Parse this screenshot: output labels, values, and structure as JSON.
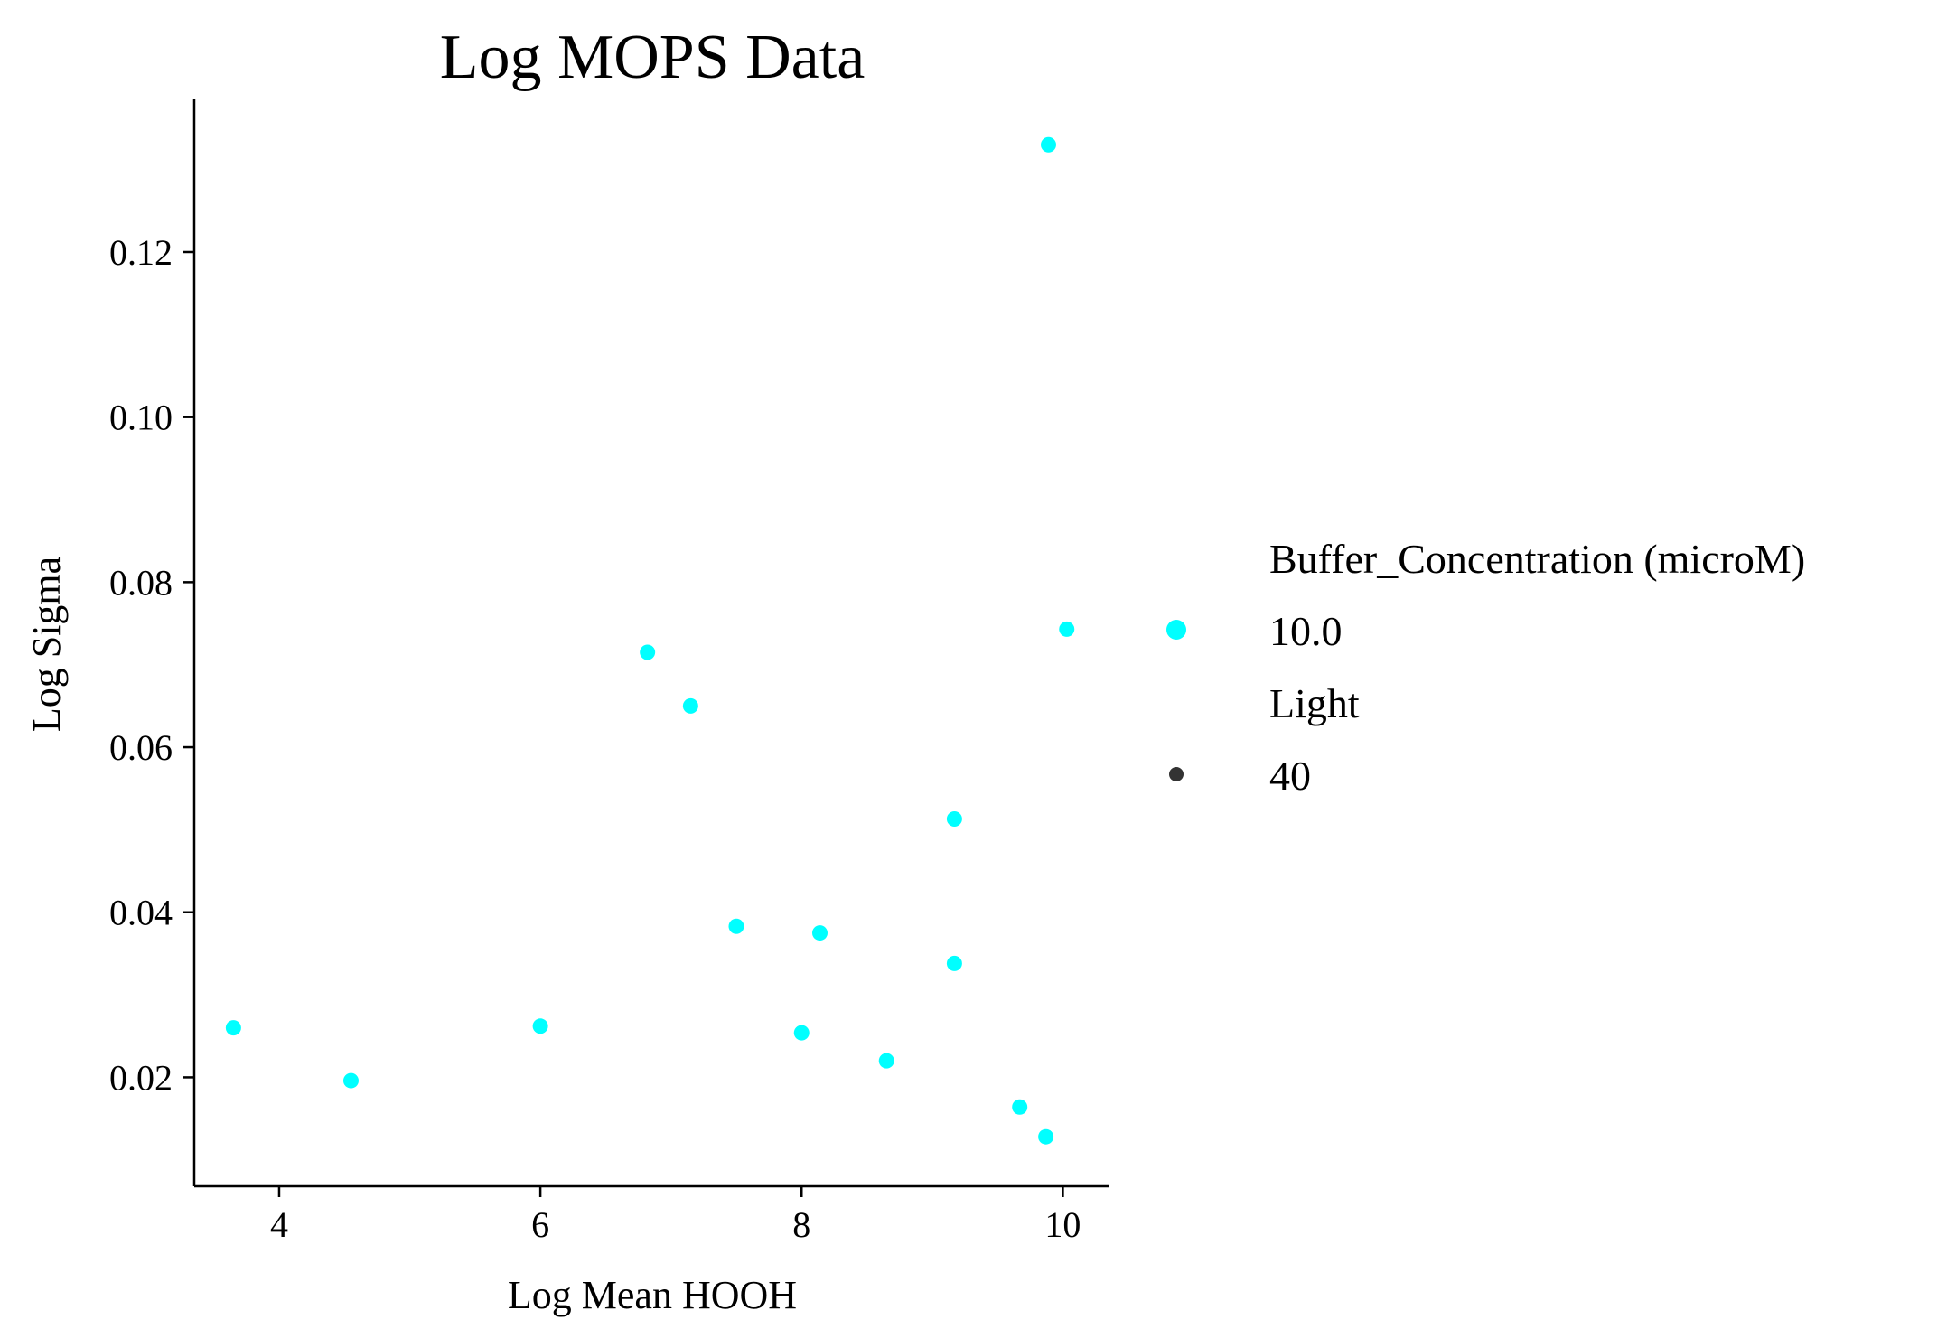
{
  "chart_data": {
    "type": "scatter",
    "title": "Log MOPS Data",
    "xlabel": "Log Mean HOOH",
    "ylabel": "Log Sigma",
    "xlim": [
      3.35,
      10.35
    ],
    "ylim": [
      0.0068,
      0.1385
    ],
    "xticks": [
      4,
      6,
      8,
      10
    ],
    "xtick_labels": [
      "4",
      "6",
      "8",
      "10"
    ],
    "yticks": [
      0.02,
      0.04,
      0.06,
      0.08,
      0.1,
      0.12
    ],
    "ytick_labels": [
      "0.02",
      "0.04",
      "0.06",
      "0.08",
      "0.10",
      "0.12"
    ],
    "grid": false,
    "point_color": "#00ffff",
    "points": [
      {
        "x": 3.65,
        "y": 0.026
      },
      {
        "x": 4.55,
        "y": 0.0196
      },
      {
        "x": 6.0,
        "y": 0.0262
      },
      {
        "x": 6.82,
        "y": 0.0715
      },
      {
        "x": 7.15,
        "y": 0.065
      },
      {
        "x": 7.5,
        "y": 0.0383
      },
      {
        "x": 8.0,
        "y": 0.0254
      },
      {
        "x": 8.14,
        "y": 0.0375
      },
      {
        "x": 8.65,
        "y": 0.022
      },
      {
        "x": 9.17,
        "y": 0.0513
      },
      {
        "x": 9.17,
        "y": 0.0338
      },
      {
        "x": 9.67,
        "y": 0.0164
      },
      {
        "x": 9.87,
        "y": 0.0128
      },
      {
        "x": 9.89,
        "y": 0.133
      },
      {
        "x": 10.03,
        "y": 0.0743
      }
    ],
    "legend": {
      "placement": "right",
      "sections": [
        {
          "title": "Buffer_Concentration (microM)",
          "entries": [
            {
              "label": "10.0",
              "color": "#00ffff"
            }
          ]
        },
        {
          "title": "Light",
          "entries": [
            {
              "label": "40",
              "color": "#333333"
            }
          ]
        }
      ]
    }
  }
}
